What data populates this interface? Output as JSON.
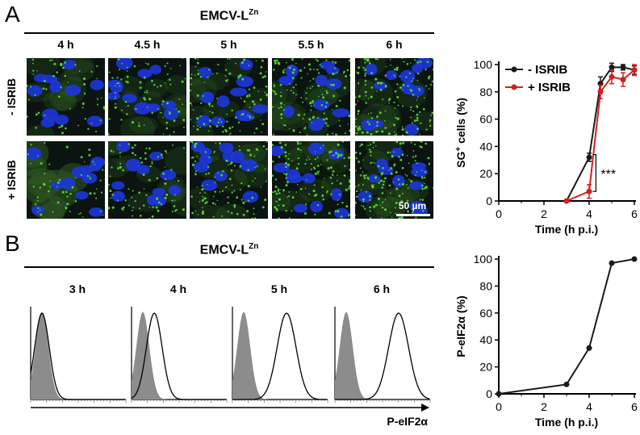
{
  "panelA": {
    "letter": "A",
    "title_main": "EMCV-L",
    "title_sup": "Zn",
    "timepoints": [
      "4 h",
      "4.5 h",
      "5 h",
      "5.5 h",
      "6 h"
    ],
    "rows": [
      "- ISRIB",
      "+ ISRIB"
    ],
    "scale_bar": "50 µm",
    "colors": {
      "nucleus": "#1c36d6",
      "granule": "#5fe63a",
      "background": "#0b1410"
    }
  },
  "panelB": {
    "letter": "B",
    "title_main": "EMCV-L",
    "title_sup": "Zn",
    "timepoints": [
      "3 h",
      "4 h",
      "5 h",
      "6 h"
    ],
    "x_arrow_label": "P-eIF2α",
    "histogram_peak_shift": [
      0.0,
      0.12,
      0.45,
      0.55
    ]
  },
  "chart_data": [
    {
      "type": "line",
      "ylabel_main": "SG",
      "ylabel_sup": "+",
      "ylabel_rest": " cells (%)",
      "xlabel": "Time (h p.i.)",
      "xlim": [
        0,
        6
      ],
      "ylim": [
        0,
        100
      ],
      "xticks": [
        "0",
        "2",
        "4",
        "6"
      ],
      "yticks": [
        "0",
        "20",
        "40",
        "60",
        "80",
        "100"
      ],
      "legend": "top-left",
      "annotation": "***",
      "series": [
        {
          "name": "- ISRIB",
          "color": "#1a1a1a",
          "x": [
            3,
            4,
            4.5,
            5,
            5.5,
            6
          ],
          "y": [
            0,
            32,
            86,
            98,
            98,
            96
          ],
          "err": [
            0,
            3,
            5,
            3,
            2,
            3
          ]
        },
        {
          "name": "+ ISRIB",
          "color": "#d02020",
          "x": [
            3,
            4,
            4.5,
            5,
            5.5,
            6
          ],
          "y": [
            0,
            7,
            80,
            91,
            89,
            96
          ],
          "err": [
            0,
            5,
            5,
            5,
            5,
            4
          ]
        }
      ]
    },
    {
      "type": "line",
      "ylabel": "P-eIF2α (%)",
      "xlabel": "Time (h p.i.)",
      "xlim": [
        0,
        6
      ],
      "ylim": [
        0,
        100
      ],
      "xticks": [
        "0",
        "2",
        "4",
        "6"
      ],
      "yticks": [
        "0",
        "20",
        "40",
        "60",
        "80",
        "100"
      ],
      "series": [
        {
          "name": "",
          "color": "#1a1a1a",
          "x": [
            0,
            3,
            4,
            5,
            6
          ],
          "y": [
            0,
            7,
            34,
            97,
            100
          ]
        }
      ]
    }
  ]
}
